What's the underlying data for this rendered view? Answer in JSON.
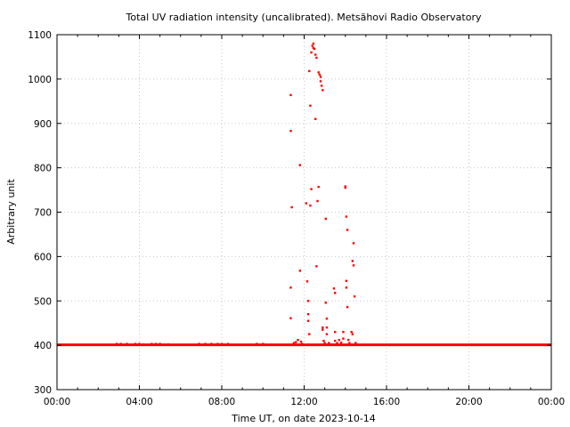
{
  "chart_data": {
    "type": "scatter",
    "title": "Total UV radiation intensity (uncalibrated). Metsähovi Radio Observatory",
    "xlabel": "Time UT, on date 2023-10-14",
    "ylabel": "Arbitrary unit",
    "xlim": [
      0,
      24
    ],
    "ylim": [
      300,
      1100
    ],
    "x_ticks": [
      0,
      4,
      8,
      12,
      16,
      20,
      24
    ],
    "x_tick_labels": [
      "00:00",
      "04:00",
      "08:00",
      "12:00",
      "16:00",
      "20:00",
      "00:00"
    ],
    "y_ticks": [
      300,
      400,
      500,
      600,
      700,
      800,
      900,
      1000,
      1100
    ],
    "y_tick_labels": [
      "300",
      "400",
      "500",
      "600",
      "700",
      "800",
      "900",
      "1000",
      "1100"
    ],
    "grid": true,
    "marker_color": "#ff0000",
    "baseline": {
      "value": 401,
      "x_range": [
        0,
        24
      ],
      "note_hidden": ""
    },
    "series": [
      {
        "values": [
          [
            11.35,
            964
          ],
          [
            11.35,
            883
          ],
          [
            11.4,
            711
          ],
          [
            11.35,
            530
          ],
          [
            11.35,
            461
          ],
          [
            11.5,
            405
          ],
          [
            11.6,
            407
          ],
          [
            11.7,
            412
          ],
          [
            11.8,
            806
          ],
          [
            11.8,
            568
          ],
          [
            11.85,
            408
          ],
          [
            11.9,
            403
          ],
          [
            12.1,
            720
          ],
          [
            12.15,
            544
          ],
          [
            12.2,
            500
          ],
          [
            12.2,
            470
          ],
          [
            12.2,
            455
          ],
          [
            12.25,
            425
          ],
          [
            12.25,
            1018
          ],
          [
            12.3,
            940
          ],
          [
            12.3,
            715
          ],
          [
            12.35,
            752
          ],
          [
            12.35,
            1060
          ],
          [
            12.4,
            1075
          ],
          [
            12.45,
            1080
          ],
          [
            12.45,
            1070
          ],
          [
            12.5,
            1068
          ],
          [
            12.55,
            1055
          ],
          [
            12.6,
            1048
          ],
          [
            12.55,
            910
          ],
          [
            12.6,
            578
          ],
          [
            12.65,
            725
          ],
          [
            12.7,
            757
          ],
          [
            12.7,
            1015
          ],
          [
            12.75,
            1010
          ],
          [
            12.8,
            1005
          ],
          [
            12.8,
            995
          ],
          [
            12.85,
            985
          ],
          [
            12.9,
            975
          ],
          [
            12.9,
            440
          ],
          [
            12.9,
            435
          ],
          [
            12.95,
            410
          ],
          [
            13.0,
            405
          ],
          [
            13.05,
            685
          ],
          [
            13.05,
            496
          ],
          [
            13.1,
            460
          ],
          [
            13.1,
            440
          ],
          [
            13.1,
            425
          ],
          [
            13.2,
            405
          ],
          [
            13.3,
            402
          ],
          [
            13.45,
            528
          ],
          [
            13.5,
            518
          ],
          [
            13.5,
            430
          ],
          [
            13.5,
            410
          ],
          [
            13.6,
            405
          ],
          [
            13.7,
            412
          ],
          [
            13.8,
            406
          ],
          [
            13.9,
            415
          ],
          [
            13.9,
            430
          ],
          [
            14.0,
            758
          ],
          [
            14.0,
            755
          ],
          [
            14.05,
            690
          ],
          [
            14.1,
            660
          ],
          [
            14.05,
            545
          ],
          [
            14.05,
            530
          ],
          [
            14.1,
            486
          ],
          [
            14.15,
            412
          ],
          [
            14.2,
            405
          ],
          [
            14.3,
            430
          ],
          [
            14.35,
            425
          ],
          [
            14.35,
            590
          ],
          [
            14.4,
            630
          ],
          [
            14.4,
            580
          ],
          [
            14.45,
            510
          ],
          [
            14.5,
            405
          ],
          [
            2.9,
            403
          ],
          [
            3.1,
            403
          ],
          [
            3.4,
            403
          ],
          [
            3.6,
            401
          ],
          [
            3.8,
            403
          ],
          [
            4.0,
            403
          ],
          [
            4.2,
            402
          ],
          [
            4.6,
            403
          ],
          [
            4.8,
            403
          ],
          [
            5.0,
            403
          ],
          [
            5.4,
            402
          ],
          [
            6.9,
            403
          ],
          [
            7.2,
            403
          ],
          [
            7.5,
            403
          ],
          [
            7.8,
            403
          ],
          [
            8.0,
            403
          ],
          [
            8.3,
            403
          ],
          [
            9.7,
            403
          ],
          [
            10.0,
            403
          ]
        ]
      }
    ]
  }
}
